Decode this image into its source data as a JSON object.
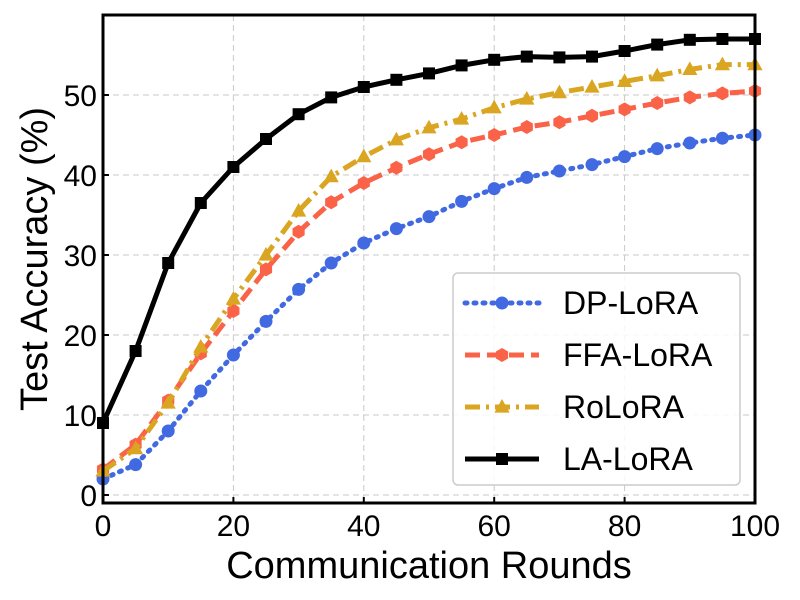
{
  "chart_data": {
    "type": "line",
    "title": "",
    "xlabel": "Communication Rounds",
    "ylabel": "Test Accuracy (%)",
    "xlim": [
      0,
      100
    ],
    "ylim": [
      -1,
      60
    ],
    "xticks": [
      0,
      20,
      40,
      60,
      80,
      100
    ],
    "yticks": [
      0,
      10,
      20,
      30,
      40,
      50
    ],
    "grid": true,
    "legend_position": "bottom-right",
    "x": [
      0,
      5,
      10,
      15,
      20,
      25,
      30,
      35,
      40,
      45,
      50,
      55,
      60,
      65,
      70,
      75,
      80,
      85,
      90,
      95,
      100
    ],
    "series": [
      {
        "name": "DP-LoRA",
        "color": "#4169E1",
        "linestyle": "dotted",
        "marker": "circle",
        "values": [
          2,
          3.8,
          8,
          13,
          17.5,
          21.7,
          25.7,
          29,
          31.5,
          33.3,
          34.8,
          36.7,
          38.3,
          39.7,
          40.5,
          41.3,
          42.3,
          43.3,
          44,
          44.6,
          45
        ]
      },
      {
        "name": "FFA-LoRA",
        "color": "#FA6348",
        "linestyle": "dashed",
        "marker": "hexagon",
        "values": [
          3.2,
          6.3,
          11.8,
          17.7,
          23,
          28.2,
          32.9,
          36.6,
          39,
          40.9,
          42.6,
          44.1,
          45,
          46,
          46.6,
          47.4,
          48.2,
          49,
          49.7,
          50.2,
          50.5
        ]
      },
      {
        "name": "RoLoRA",
        "color": "#DAA520",
        "linestyle": "dashdot",
        "marker": "triangle",
        "values": [
          3,
          5.8,
          11.5,
          18.5,
          24.5,
          30,
          35.5,
          39.8,
          42.3,
          44.4,
          45.9,
          47,
          48.4,
          49.5,
          50.3,
          51,
          51.7,
          52.4,
          53.2,
          53.8,
          53.8
        ]
      },
      {
        "name": "LA-LoRA",
        "color": "#000000",
        "linestyle": "solid",
        "marker": "square",
        "values": [
          9,
          18,
          29,
          36.5,
          41,
          44.5,
          47.6,
          49.7,
          51,
          51.9,
          52.7,
          53.7,
          54.4,
          54.8,
          54.7,
          54.8,
          55.5,
          56.3,
          56.9,
          57,
          57
        ]
      }
    ]
  }
}
